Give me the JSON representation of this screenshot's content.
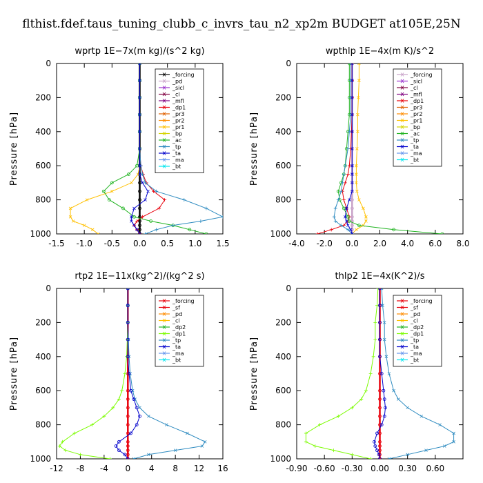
{
  "suptitle": "flthist.fdef.taus_tuning_clubb_c_invrs_tau_n2_xp2m  BUDGET at105E,25N",
  "chart_data": [
    {
      "type": "line",
      "title": "wprtp   1E−7x(m kg)/(s^2 kg)",
      "ylabel": "Pressure  [hPa]",
      "xlim": [
        -1.5,
        1.5
      ],
      "ylim": [
        1000,
        0
      ],
      "xticks": [
        -1.5,
        -1.0,
        -0.5,
        0.0,
        0.5,
        1.0,
        1.5
      ],
      "xtick_labels": [
        "-1.5",
        "-1.0",
        "-0.5",
        "0.0",
        "0.5",
        "1.0",
        "1.5"
      ],
      "yticks": [
        0,
        200,
        400,
        600,
        800,
        1000
      ],
      "ytick_labels": [
        "0",
        "200",
        "400",
        "600",
        "800",
        "1000"
      ],
      "legend": [
        "_forcing",
        "_pd",
        "_sicl",
        "_cl",
        "_mfl",
        "_dp1",
        "_pr3",
        "_pr2",
        "_pr1",
        "_bp",
        "_ac",
        "_tp",
        "_ta",
        "_ma",
        "_bt"
      ],
      "legend_colors": [
        "#000000",
        "#c8a2c8",
        "#9932cc",
        "#800040",
        "#800080",
        "#e8000b",
        "#e06000",
        "#ff8c00",
        "#ffc000",
        "#d4d400",
        "#22b422",
        "#2e8bc0",
        "#0000cc",
        "#6495ed",
        "#00e5ee"
      ],
      "pressure": [
        0,
        100,
        200,
        300,
        400,
        500,
        600,
        650,
        700,
        750,
        800,
        850,
        900,
        925,
        950,
        975,
        1000
      ],
      "series": [
        {
          "name": "_forcing",
          "color": "#000000",
          "values": [
            0,
            0,
            0,
            0,
            0,
            0,
            0,
            0,
            0,
            0,
            0,
            0,
            0,
            0,
            0,
            0,
            0
          ]
        },
        {
          "name": "_dp1",
          "color": "#e8000b",
          "values": [
            0,
            0,
            0,
            0,
            0,
            0,
            0.02,
            0.06,
            0.12,
            0.25,
            0.45,
            0.35,
            0.05,
            -0.05,
            -0.1,
            -0.05,
            0
          ]
        },
        {
          "name": "_pr1",
          "color": "#ffc000",
          "values": [
            0,
            0,
            0,
            0,
            0,
            0,
            0,
            -0.03,
            -0.15,
            -0.5,
            -0.95,
            -1.25,
            -1.25,
            -1.2,
            -1.0,
            -0.85,
            -0.75
          ]
        },
        {
          "name": "_ac",
          "color": "#22b422",
          "values": [
            0,
            0,
            0,
            0,
            0,
            0,
            -0.05,
            -0.2,
            -0.5,
            -0.65,
            -0.55,
            -0.3,
            -0.1,
            0.2,
            0.6,
            0.9,
            1.2
          ]
        },
        {
          "name": "_tp",
          "color": "#2e8bc0",
          "values": [
            0,
            0,
            0,
            0,
            0,
            0,
            0.02,
            0.05,
            0.1,
            0.3,
            0.8,
            1.2,
            1.5,
            1.1,
            0.6,
            0.3,
            0.1
          ]
        },
        {
          "name": "_ta",
          "color": "#0000cc",
          "values": [
            0,
            0,
            0,
            0,
            0,
            0,
            0,
            0,
            0.05,
            0.15,
            0.1,
            -0.1,
            -0.15,
            -0.15,
            -0.1,
            -0.05,
            0
          ]
        }
      ]
    },
    {
      "type": "line",
      "title": "wpthlp   1E−4x(m K)/s^2",
      "ylabel": "Pressure  [hPa]",
      "xlim": [
        -4.0,
        8.0
      ],
      "ylim": [
        1000,
        0
      ],
      "xticks": [
        -4.0,
        -2.0,
        0.0,
        2.0,
        4.0,
        6.0,
        8.0
      ],
      "xtick_labels": [
        "-4.0",
        "-2.0",
        "0.0",
        "2.0",
        "4.0",
        "6.0",
        "8.0"
      ],
      "yticks": [
        0,
        200,
        400,
        600,
        800,
        1000
      ],
      "ytick_labels": [
        "0",
        "200",
        "400",
        "600",
        "800",
        "1000"
      ],
      "legend": [
        "_forcing",
        "_sicl",
        "_cl",
        "_mfl",
        "_dp1",
        "_pr3",
        "_pr2",
        "_pr1",
        "_bp",
        "_ac",
        "_tp",
        "_ta",
        "_ma",
        "_bt"
      ],
      "legend_colors": [
        "#c8a2c8",
        "#9932cc",
        "#800040",
        "#800080",
        "#e8000b",
        "#e06000",
        "#ff8c00",
        "#ffc000",
        "#d4d400",
        "#22b422",
        "#2e8bc0",
        "#0000cc",
        "#6495ed",
        "#00e5ee"
      ],
      "pressure": [
        0,
        100,
        200,
        300,
        400,
        500,
        600,
        650,
        700,
        750,
        800,
        850,
        900,
        925,
        950,
        975,
        1000
      ],
      "series": [
        {
          "name": "_forcing",
          "color": "#c8a2c8",
          "values": [
            0,
            0,
            0,
            0,
            0,
            0,
            0,
            0,
            0,
            0,
            0,
            0,
            0,
            0,
            0,
            0,
            0
          ]
        },
        {
          "name": "_dp1",
          "color": "#e8000b",
          "values": [
            0,
            0,
            0,
            0,
            -0.05,
            -0.1,
            -0.2,
            -0.3,
            -0.5,
            -0.7,
            -0.6,
            -0.4,
            -0.2,
            -0.3,
            -0.6,
            -1.5,
            -2.5
          ]
        },
        {
          "name": "_pr1",
          "color": "#ffc000",
          "values": [
            0.5,
            0.5,
            0.45,
            0.4,
            0.4,
            0.35,
            0.3,
            0.3,
            0.3,
            0.35,
            0.5,
            0.8,
            1.0,
            1.0,
            0.8,
            0.3,
            0
          ]
        },
        {
          "name": "_ac",
          "color": "#22b422",
          "values": [
            -0.2,
            -0.2,
            -0.2,
            -0.2,
            -0.3,
            -0.4,
            -0.5,
            -0.6,
            -0.8,
            -1.0,
            -0.9,
            -0.6,
            -0.3,
            -0.2,
            0.5,
            3.0,
            6.5
          ]
        },
        {
          "name": "_tp",
          "color": "#2e8bc0",
          "values": [
            -0.1,
            -0.1,
            -0.1,
            -0.1,
            -0.2,
            -0.3,
            -0.5,
            -0.6,
            -0.7,
            -0.8,
            -1.0,
            -1.2,
            -1.3,
            -1.2,
            -0.8,
            -0.3,
            0
          ]
        },
        {
          "name": "_ta",
          "color": "#0000cc",
          "values": [
            0,
            0,
            0,
            0,
            0,
            0,
            0,
            0,
            0,
            0,
            -0.2,
            -0.4,
            -0.5,
            -0.4,
            -0.3,
            -0.1,
            0
          ]
        }
      ]
    },
    {
      "type": "line",
      "title": "rtp2   1E−11x(kg^2)/(kg^2 s)",
      "ylabel": "Pressure  [hPa]",
      "xlim": [
        -12,
        16
      ],
      "ylim": [
        1000,
        0
      ],
      "xticks": [
        -12,
        -8,
        -4,
        0,
        4,
        8,
        12,
        16
      ],
      "xtick_labels": [
        "-12",
        "-8",
        "-4",
        "0",
        "4",
        "8",
        "12",
        "16"
      ],
      "yticks": [
        0,
        200,
        400,
        600,
        800,
        1000
      ],
      "ytick_labels": [
        "0",
        "200",
        "400",
        "600",
        "800",
        "1000"
      ],
      "legend": [
        "_forcing",
        "_sf",
        "_pd",
        "_cl",
        "_dp2",
        "_dp1",
        "_tp",
        "_ta",
        "_ma",
        "_bt"
      ],
      "legend_colors": [
        "#e8000b",
        "#e8000b",
        "#ff8c00",
        "#ffc000",
        "#22b422",
        "#7cfc00",
        "#2e8bc0",
        "#0000cc",
        "#6495ed",
        "#00e5ee"
      ],
      "pressure": [
        0,
        100,
        200,
        300,
        400,
        500,
        600,
        650,
        700,
        750,
        800,
        850,
        900,
        925,
        950,
        975,
        1000
      ],
      "series": [
        {
          "name": "_forcing",
          "color": "#e8000b",
          "values": [
            0,
            0,
            0,
            0,
            0,
            0,
            0,
            0,
            0,
            0,
            0,
            0,
            0,
            0,
            0,
            0,
            0
          ]
        },
        {
          "name": "_dp1",
          "color": "#7cfc00",
          "values": [
            0,
            0,
            0,
            -0.1,
            -0.2,
            -0.5,
            -1.0,
            -1.5,
            -2.5,
            -4.0,
            -6.0,
            -9.0,
            -11.0,
            -11.5,
            -10.5,
            -8.0,
            -3.0
          ]
        },
        {
          "name": "_tp",
          "color": "#2e8bc0",
          "values": [
            0,
            0,
            0,
            0.1,
            0.2,
            0.4,
            0.8,
            1.2,
            2.0,
            3.5,
            6.5,
            10.0,
            13.0,
            12.5,
            8.0,
            3.5,
            1.0
          ]
        },
        {
          "name": "_ta",
          "color": "#0000cc",
          "values": [
            0,
            0,
            0,
            0,
            0,
            0.2,
            0.5,
            1.0,
            1.5,
            2.0,
            1.5,
            0.5,
            -1.5,
            -2.0,
            -1.5,
            -0.5,
            0
          ]
        }
      ]
    },
    {
      "type": "line",
      "title": "thlp2   1E−4x(K^2)/s",
      "ylabel": "Pressure  [hPa]",
      "xlim": [
        -0.9,
        0.9
      ],
      "ylim": [
        1000,
        0
      ],
      "xticks": [
        -0.9,
        -0.6,
        -0.3,
        0.0,
        0.3,
        0.6
      ],
      "xtick_labels": [
        "-0.90",
        "-0.60",
        "-0.30",
        "0.00",
        "0.30",
        "0.60"
      ],
      "yticks": [
        0,
        200,
        400,
        600,
        800,
        1000
      ],
      "ytick_labels": [
        "0",
        "200",
        "400",
        "600",
        "800",
        "1000"
      ],
      "legend": [
        "_forcing",
        "_sf",
        "_pd",
        "_cl",
        "_dp2",
        "_dp1",
        "_tp",
        "_ta",
        "_ma",
        "_bt"
      ],
      "legend_colors": [
        "#e8000b",
        "#e8000b",
        "#ff8c00",
        "#ffc000",
        "#22b422",
        "#7cfc00",
        "#2e8bc0",
        "#0000cc",
        "#6495ed",
        "#00e5ee"
      ],
      "pressure": [
        0,
        100,
        200,
        300,
        400,
        500,
        600,
        650,
        700,
        750,
        800,
        850,
        900,
        925,
        950,
        975,
        1000
      ],
      "series": [
        {
          "name": "_forcing",
          "color": "#e8000b",
          "values": [
            0,
            0,
            0,
            0,
            0,
            0,
            0,
            0,
            0,
            0,
            0,
            0,
            0,
            0,
            0,
            0,
            0
          ]
        },
        {
          "name": "_dp1",
          "color": "#7cfc00",
          "values": [
            -0.02,
            -0.03,
            -0.05,
            -0.05,
            -0.07,
            -0.1,
            -0.15,
            -0.2,
            -0.3,
            -0.45,
            -0.65,
            -0.8,
            -0.8,
            -0.7,
            -0.5,
            -0.3,
            -0.1
          ]
        },
        {
          "name": "_tp",
          "color": "#2e8bc0",
          "values": [
            0.02,
            0.03,
            0.05,
            0.05,
            0.07,
            0.1,
            0.15,
            0.2,
            0.3,
            0.45,
            0.65,
            0.8,
            0.8,
            0.7,
            0.5,
            0.3,
            0.1
          ]
        },
        {
          "name": "_ta",
          "color": "#0000cc",
          "values": [
            0,
            0,
            0,
            0,
            0,
            0.02,
            0.04,
            0.05,
            0.06,
            0.05,
            0.02,
            -0.03,
            -0.06,
            -0.05,
            -0.03,
            -0.01,
            0
          ]
        }
      ]
    }
  ]
}
